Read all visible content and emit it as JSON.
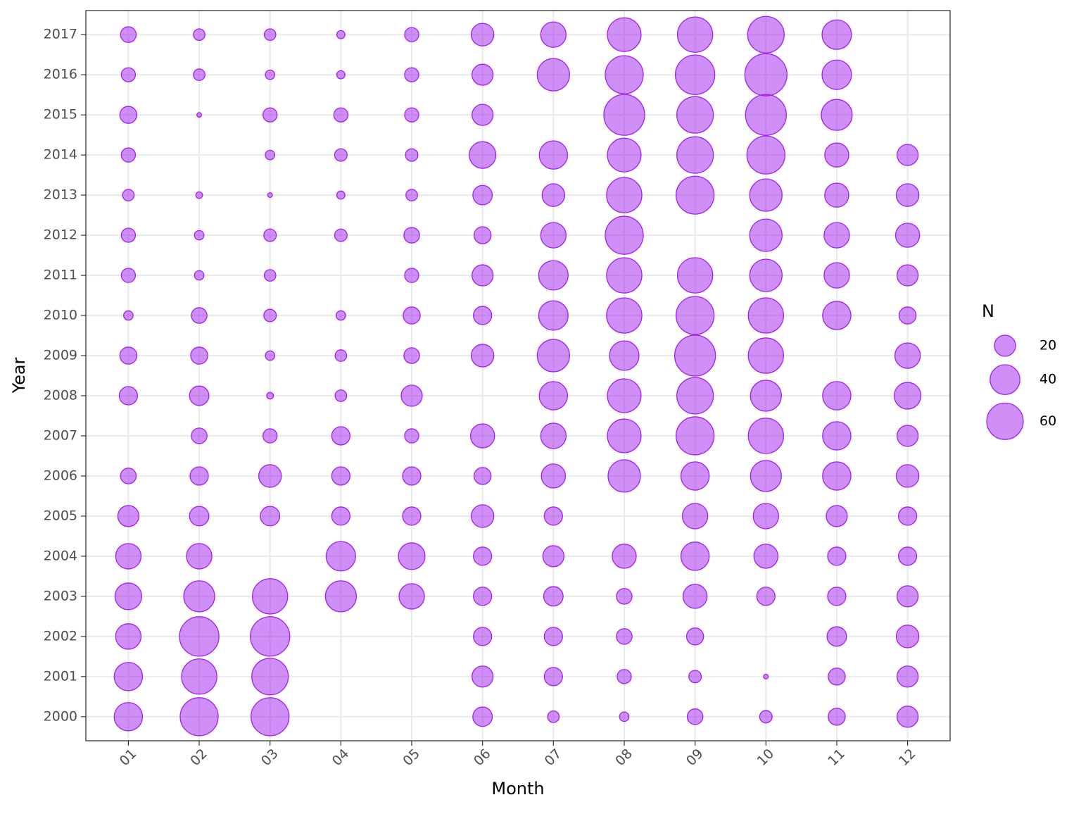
{
  "chart_data": {
    "type": "bubble",
    "x_label": "Month",
    "y_label": "Year",
    "categories": [
      "01",
      "02",
      "03",
      "04",
      "05",
      "06",
      "07",
      "08",
      "09",
      "10",
      "11",
      "12"
    ],
    "y_categories": [
      "2000",
      "2001",
      "2002",
      "2003",
      "2004",
      "2005",
      "2006",
      "2007",
      "2008",
      "2009",
      "2010",
      "2011",
      "2012",
      "2013",
      "2014",
      "2015",
      "2016",
      "2017"
    ],
    "values": [
      [
        36,
        65,
        65,
        null,
        null,
        17,
        6,
        4,
        11,
        7,
        13,
        20
      ],
      [
        36,
        56,
        60,
        null,
        null,
        20,
        15,
        9,
        7,
        1,
        13,
        20
      ],
      [
        29,
        70,
        70,
        null,
        null,
        15,
        15,
        11,
        13,
        null,
        17,
        23
      ],
      [
        32,
        43,
        56,
        43,
        29,
        15,
        17,
        11,
        26,
        15,
        15,
        20
      ],
      [
        29,
        29,
        null,
        39,
        32,
        15,
        20,
        26,
        36,
        26,
        15,
        15
      ],
      [
        20,
        17,
        17,
        15,
        15,
        23,
        15,
        null,
        29,
        29,
        20,
        15
      ],
      [
        11,
        15,
        23,
        15,
        15,
        13,
        26,
        47,
        36,
        43,
        36,
        23
      ],
      [
        null,
        11,
        9,
        15,
        9,
        26,
        29,
        51,
        65,
        56,
        36,
        20
      ],
      [
        15,
        17,
        2,
        6,
        20,
        null,
        36,
        51,
        60,
        43,
        36,
        32
      ],
      [
        13,
        13,
        4,
        6,
        11,
        23,
        47,
        39,
        75,
        56,
        null,
        29
      ],
      [
        4,
        11,
        7,
        4,
        13,
        15,
        39,
        56,
        65,
        56,
        36,
        13
      ],
      [
        9,
        4,
        6,
        null,
        9,
        20,
        39,
        56,
        56,
        47,
        29,
        20
      ],
      [
        9,
        4,
        7,
        7,
        11,
        13,
        29,
        65,
        null,
        47,
        29,
        26
      ],
      [
        6,
        2,
        1,
        3,
        6,
        17,
        23,
        56,
        65,
        47,
        26,
        23
      ],
      [
        9,
        null,
        4,
        7,
        7,
        32,
        36,
        51,
        60,
        65,
        26,
        20
      ],
      [
        13,
        1,
        9,
        9,
        9,
        20,
        null,
        75,
        60,
        75,
        43,
        null
      ],
      [
        9,
        6,
        4,
        3,
        9,
        20,
        47,
        65,
        70,
        80,
        39,
        null
      ],
      [
        11,
        6,
        6,
        3,
        9,
        23,
        29,
        51,
        56,
        60,
        39,
        null
      ]
    ],
    "fill": "#a020f0",
    "stroke": "#a020f0",
    "grid": true,
    "size_legend": {
      "title": "N",
      "values": [
        20,
        40,
        60
      ]
    }
  }
}
